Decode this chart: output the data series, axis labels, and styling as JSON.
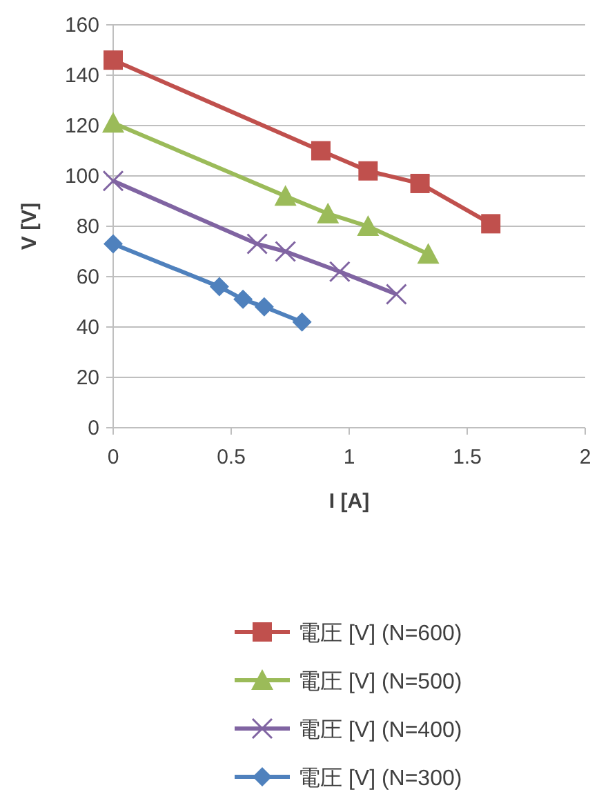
{
  "chart_data": {
    "type": "line",
    "xlabel": "I [A]",
    "ylabel": "V [V]",
    "xlim": [
      0,
      2
    ],
    "xticks": [
      0,
      0.5,
      1,
      1.5,
      2
    ],
    "ylim": [
      0,
      160
    ],
    "yticks": [
      0,
      20,
      40,
      60,
      80,
      100,
      120,
      140,
      160
    ],
    "grid": "y",
    "legend": "bottom",
    "line_style": "solid",
    "series": [
      {
        "name": "電圧 [V] (N=600)",
        "color": "#c0504d",
        "marker": "square",
        "x": [
          0,
          0.88,
          1.08,
          1.3,
          1.6
        ],
        "values": [
          146,
          110,
          102,
          97,
          81
        ]
      },
      {
        "name": "電圧 [V] (N=500)",
        "color": "#9bbb59",
        "marker": "triangle",
        "x": [
          0,
          0.73,
          0.91,
          1.08,
          1.335
        ],
        "values": [
          121,
          92,
          85,
          80,
          69
        ]
      },
      {
        "name": "電圧 [V] (N=400)",
        "color": "#8064a2",
        "marker": "cross",
        "x": [
          0,
          0.61,
          0.73,
          0.96,
          1.2
        ],
        "values": [
          98,
          73,
          70,
          62,
          53
        ]
      },
      {
        "name": "電圧 [V] (N=300)",
        "color": "#4f81bd",
        "marker": "diamond",
        "x": [
          0,
          0.45,
          0.55,
          0.64,
          0.8
        ],
        "values": [
          73,
          56,
          51,
          48,
          42
        ]
      }
    ]
  }
}
